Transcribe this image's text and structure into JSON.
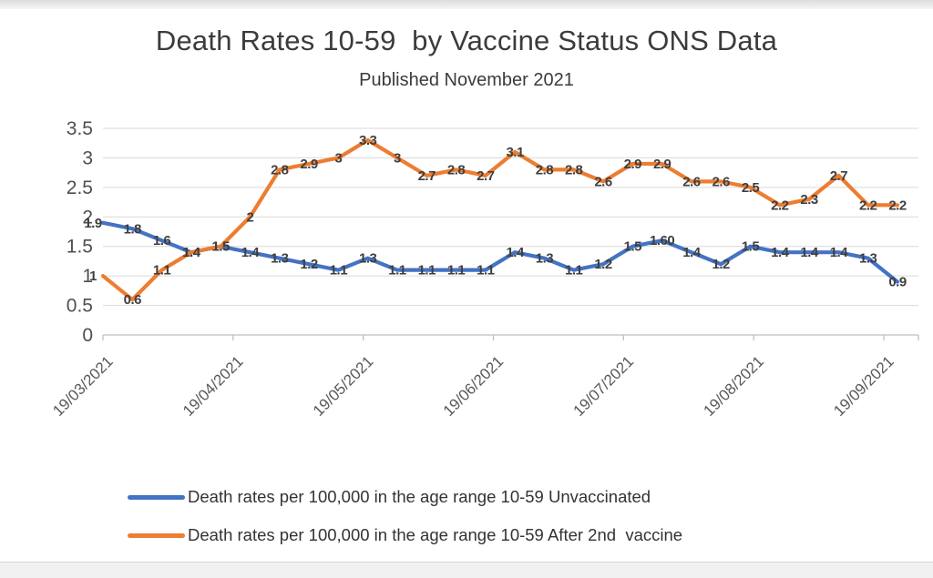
{
  "page": {
    "background": "#ffffff",
    "top_strip_color": "#dcdcdc",
    "bottom_strip_color": "#f1f1f1"
  },
  "chart_data": {
    "type": "line",
    "title": "Death Rates 10-59  by Vaccine Status ONS Data",
    "subtitle": "Published November 2021",
    "grid": true,
    "legend_position": "bottom",
    "x_axis": {
      "tick_labels": [
        "19/03/2021",
        "19/04/2021",
        "19/05/2021",
        "19/06/2021",
        "19/07/2021",
        "19/08/2021",
        "19/09/2021"
      ],
      "n_points": 28
    },
    "y_axis": {
      "ticks": [
        0,
        0.5,
        1,
        1.5,
        2,
        2.5,
        3,
        3.5
      ],
      "tick_labels": [
        "0",
        "0.5",
        "1",
        "1.5",
        "2",
        "2.5",
        "3",
        "3.5"
      ],
      "range": [
        0,
        3.5
      ]
    },
    "axis_colors": {
      "axis_line": "#bfbfbf",
      "gridline": "#d9d9d9",
      "tick_label": "#595959",
      "data_label": "#3f3f3f"
    },
    "series": [
      {
        "key": "unvaccinated",
        "name": "Death rates per 100,000 in the age range 10-59 Unvaccinated",
        "color": "#4472C4",
        "values": [
          1.9,
          1.8,
          1.6,
          1.4,
          1.5,
          1.4,
          1.3,
          1.2,
          1.1,
          1.3,
          1.1,
          1.1,
          1.1,
          1.1,
          1.4,
          1.3,
          1.1,
          1.2,
          1.5,
          1.6,
          1.4,
          1.2,
          1.5,
          1.4,
          1.4,
          1.4,
          1.3,
          0.9
        ],
        "labels": [
          "1.9",
          "1.8",
          "1.6",
          "1.4",
          "1.5",
          "1.4",
          "1.3",
          "1.2",
          "1.1",
          "1.3",
          "1.1",
          "1.1",
          "1.1",
          "1.1",
          "1.4",
          "1.3",
          "1.1",
          "1.2",
          "1.5",
          "1.60",
          "1.4",
          "1.2",
          "1.5",
          "1.4",
          "1.4",
          "1.4",
          "1.3",
          "0.9"
        ]
      },
      {
        "key": "after-2nd-vaccine",
        "name": "Death rates per 100,000 in the age range 10-59 After 2nd  vaccine",
        "color": "#ED7D31",
        "values": [
          1,
          0.6,
          1.1,
          1.4,
          1.5,
          2,
          2.8,
          2.9,
          3,
          3.3,
          3,
          2.7,
          2.8,
          2.7,
          3.1,
          2.8,
          2.8,
          2.6,
          2.9,
          2.9,
          2.6,
          2.6,
          2.5,
          2.2,
          2.3,
          2.7,
          2.2,
          2.2
        ],
        "labels": [
          "1",
          "0.6",
          "1.1",
          "1.4",
          "1.5",
          "2",
          "2.8",
          "2.9",
          "3",
          "3.3",
          "3",
          "2.7",
          "2.8",
          "2.7",
          "3.1",
          "2.8",
          "2.8",
          "2.6",
          "2.9",
          "2.9",
          "2.6",
          "2.6",
          "2.5",
          "2.2",
          "2.3",
          "2.7",
          "2.2",
          "2.2"
        ]
      }
    ]
  }
}
